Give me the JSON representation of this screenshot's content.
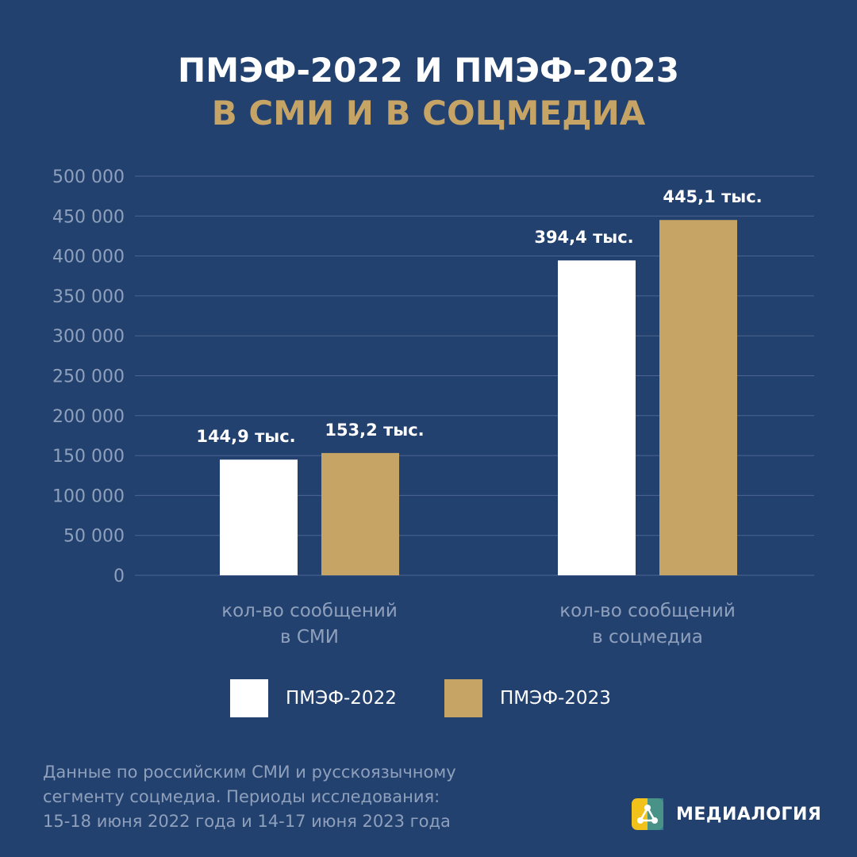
{
  "title": {
    "line1": "ПМЭФ-2022 И ПМЭФ-2023",
    "line2": "В СМИ И В СОЦМЕДИА"
  },
  "colors": {
    "background": "#23416f",
    "series_2022": "#ffffff",
    "series_2023": "#c6a466",
    "gridline": "#4d6590",
    "muted_text": "#8ea0bb"
  },
  "chart_data": {
    "type": "bar",
    "categories": [
      [
        "кол-во сообщений",
        "в СМИ"
      ],
      [
        "кол-во сообщений",
        "в соцмедиа"
      ]
    ],
    "series": [
      {
        "name": "ПМЭФ-2022",
        "values": [
          144900,
          394400
        ],
        "labels": [
          "144,9 тыс.",
          "394,4 тыс."
        ]
      },
      {
        "name": "ПМЭФ-2023",
        "values": [
          153200,
          445100
        ],
        "labels": [
          "153,2 тыс.",
          "445,1 тыс."
        ]
      }
    ],
    "yticks": [
      "0",
      "50 000",
      "100 000",
      "150 000",
      "200 000",
      "250 000",
      "300 000",
      "350 000",
      "400 000",
      "450 000",
      "500 000"
    ],
    "ylim": [
      0,
      500000
    ],
    "grid": true,
    "legend": "bottom-center"
  },
  "footnote": {
    "line1": "Данные по российским СМИ и русскоязычному",
    "line2": "сегменту соцмедиа. Периоды исследования:",
    "line3": "15-18 июня 2022 года и 14-17 июня 2023 года"
  },
  "brand": {
    "name": "МЕДИАЛОГИЯ",
    "logo_icon": "medialogia-logo-icon"
  }
}
